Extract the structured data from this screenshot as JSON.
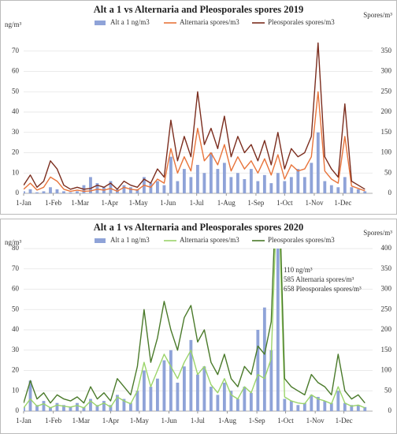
{
  "chart_data": [
    {
      "type": "combo",
      "title": "Alt a 1 vs Alternaria and Pleosporales spores 2019",
      "y_label": "ng/m³",
      "y2_label": "Spores/m³",
      "x": [
        1,
        8,
        15,
        22,
        29,
        36,
        43,
        50,
        57,
        64,
        71,
        78,
        85,
        92,
        99,
        106,
        113,
        120,
        127,
        134,
        141,
        148,
        155,
        162,
        169,
        176,
        183,
        190,
        197,
        204,
        211,
        218,
        225,
        232,
        239,
        246,
        253,
        260,
        267,
        274,
        281,
        288,
        295,
        302,
        309,
        316,
        323,
        330,
        337,
        344,
        351,
        358
      ],
      "xlim": [
        1,
        366
      ],
      "xticks": [
        {
          "value": 1,
          "label": "1-Jan"
        },
        {
          "value": 32,
          "label": "1-Feb"
        },
        {
          "value": 60,
          "label": "1-Mar"
        },
        {
          "value": 91,
          "label": "1-Apr"
        },
        {
          "value": 121,
          "label": "1-May"
        },
        {
          "value": 152,
          "label": "1-Jun"
        },
        {
          "value": 182,
          "label": "1-Jul"
        },
        {
          "value": 213,
          "label": "1-Aug"
        },
        {
          "value": 244,
          "label": "1-Sep"
        },
        {
          "value": 274,
          "label": "1-Oct"
        },
        {
          "value": 305,
          "label": "1-Nov"
        },
        {
          "value": 335,
          "label": "1-Dec"
        }
      ],
      "ylim": [
        0,
        80
      ],
      "yticks": [
        0,
        10,
        20,
        30,
        40,
        50,
        60,
        70
      ],
      "y2lim": [
        0,
        400
      ],
      "y2ticks": [
        0,
        50,
        100,
        150,
        200,
        250,
        300,
        350
      ],
      "grid": true,
      "series": [
        {
          "name": "Alt a 1 ng/m3",
          "kind": "bar",
          "color": "#8fa3d8",
          "values": [
            1,
            2,
            0.5,
            1,
            3,
            2,
            1,
            0.5,
            1,
            4,
            8,
            5,
            3,
            6,
            2,
            4,
            3,
            2,
            8,
            5,
            6,
            4,
            18,
            6,
            12,
            8,
            14,
            10,
            20,
            12,
            15,
            8,
            10,
            7,
            12,
            6,
            9,
            5,
            10,
            6,
            8,
            12,
            8,
            15,
            30,
            6,
            4,
            3,
            8,
            3,
            2,
            1
          ]
        },
        {
          "name": "Alternaria spores/m3",
          "kind": "line",
          "axis": "y2",
          "color": "#e8743b",
          "values": [
            10,
            25,
            8,
            15,
            40,
            30,
            10,
            5,
            8,
            5,
            6,
            10,
            8,
            12,
            5,
            15,
            10,
            8,
            20,
            15,
            35,
            25,
            110,
            50,
            90,
            55,
            160,
            80,
            100,
            70,
            120,
            55,
            90,
            60,
            80,
            50,
            85,
            45,
            95,
            35,
            70,
            55,
            60,
            90,
            250,
            55,
            35,
            25,
            140,
            18,
            12,
            6
          ]
        },
        {
          "name": "Pleosporales spores/m3",
          "kind": "line",
          "axis": "y2",
          "color": "#7b2d1e",
          "values": [
            20,
            45,
            15,
            30,
            80,
            60,
            20,
            10,
            15,
            10,
            12,
            20,
            15,
            25,
            10,
            30,
            20,
            15,
            35,
            25,
            60,
            40,
            180,
            80,
            140,
            90,
            250,
            120,
            160,
            110,
            190,
            90,
            140,
            100,
            120,
            80,
            130,
            70,
            150,
            60,
            110,
            90,
            100,
            140,
            370,
            90,
            60,
            40,
            220,
            30,
            20,
            10
          ]
        }
      ]
    },
    {
      "type": "combo",
      "title": "Alt a 1 vs Alternaria and Pleosporales spores 2020",
      "y_label": "ng/m³",
      "y2_label": "Spores/m³",
      "x": [
        1,
        8,
        15,
        22,
        29,
        36,
        43,
        50,
        57,
        64,
        71,
        78,
        85,
        92,
        99,
        106,
        113,
        120,
        127,
        134,
        141,
        148,
        155,
        162,
        169,
        176,
        183,
        190,
        197,
        204,
        211,
        218,
        225,
        232,
        239,
        246,
        253,
        260,
        267,
        274,
        281,
        288,
        295,
        302,
        309,
        316,
        323,
        330,
        337,
        344,
        351,
        358
      ],
      "xlim": [
        1,
        366
      ],
      "xticks": [
        {
          "value": 1,
          "label": "1-Jan"
        },
        {
          "value": 32,
          "label": "1-Feb"
        },
        {
          "value": 61,
          "label": "1-Mar"
        },
        {
          "value": 92,
          "label": "1-Apr"
        },
        {
          "value": 122,
          "label": "1-May"
        },
        {
          "value": 153,
          "label": "1-Jun"
        },
        {
          "value": 183,
          "label": "1-Jul"
        },
        {
          "value": 214,
          "label": "1-Aug"
        },
        {
          "value": 245,
          "label": "1-Sep"
        },
        {
          "value": 275,
          "label": "1-Oct"
        },
        {
          "value": 306,
          "label": "1-Nov"
        },
        {
          "value": 336,
          "label": "1-Dec"
        }
      ],
      "ylim": [
        0,
        80
      ],
      "yticks": [
        0,
        10,
        20,
        30,
        40,
        50,
        60,
        70,
        80
      ],
      "y2lim": [
        0,
        400
      ],
      "y2ticks": [
        0,
        50,
        100,
        150,
        200,
        250,
        300,
        350,
        400
      ],
      "grid": true,
      "annotations": [
        "110 ng/m³",
        "585 Alternaria spores/m³",
        "658 Pleosporales spores/m³"
      ],
      "series": [
        {
          "name": "Alt a 1 ng/m3",
          "kind": "bar",
          "color": "#8fa3d8",
          "values": [
            2,
            15,
            3,
            5,
            2,
            4,
            3,
            2,
            4,
            2,
            6,
            3,
            5,
            3,
            8,
            6,
            4,
            10,
            20,
            12,
            16,
            25,
            30,
            14,
            22,
            35,
            18,
            22,
            12,
            8,
            14,
            10,
            6,
            12,
            9,
            40,
            51,
            30,
            110,
            6,
            5,
            3,
            4,
            8,
            7,
            5,
            4,
            10,
            4,
            3,
            3,
            2
          ]
        },
        {
          "name": "Alternaria spores/m3",
          "kind": "line",
          "axis": "y2",
          "color": "#9bd46a",
          "values": [
            8,
            30,
            12,
            18,
            8,
            15,
            12,
            10,
            14,
            8,
            25,
            12,
            20,
            10,
            35,
            25,
            18,
            50,
            120,
            60,
            100,
            140,
            110,
            80,
            120,
            150,
            90,
            110,
            65,
            45,
            80,
            40,
            30,
            60,
            45,
            90,
            80,
            130,
            585,
            35,
            25,
            20,
            18,
            40,
            30,
            25,
            18,
            60,
            20,
            12,
            15,
            8
          ]
        },
        {
          "name": "Pleosporales spores/m3",
          "kind": "line",
          "axis": "y2",
          "color": "#4a7a2a",
          "values": [
            20,
            75,
            30,
            45,
            20,
            40,
            30,
            25,
            35,
            20,
            60,
            30,
            45,
            25,
            80,
            60,
            40,
            110,
            250,
            120,
            180,
            270,
            200,
            150,
            230,
            260,
            170,
            200,
            120,
            90,
            140,
            80,
            60,
            110,
            90,
            160,
            140,
            220,
            658,
            80,
            60,
            50,
            40,
            90,
            70,
            60,
            40,
            140,
            50,
            30,
            40,
            20
          ]
        }
      ]
    }
  ]
}
